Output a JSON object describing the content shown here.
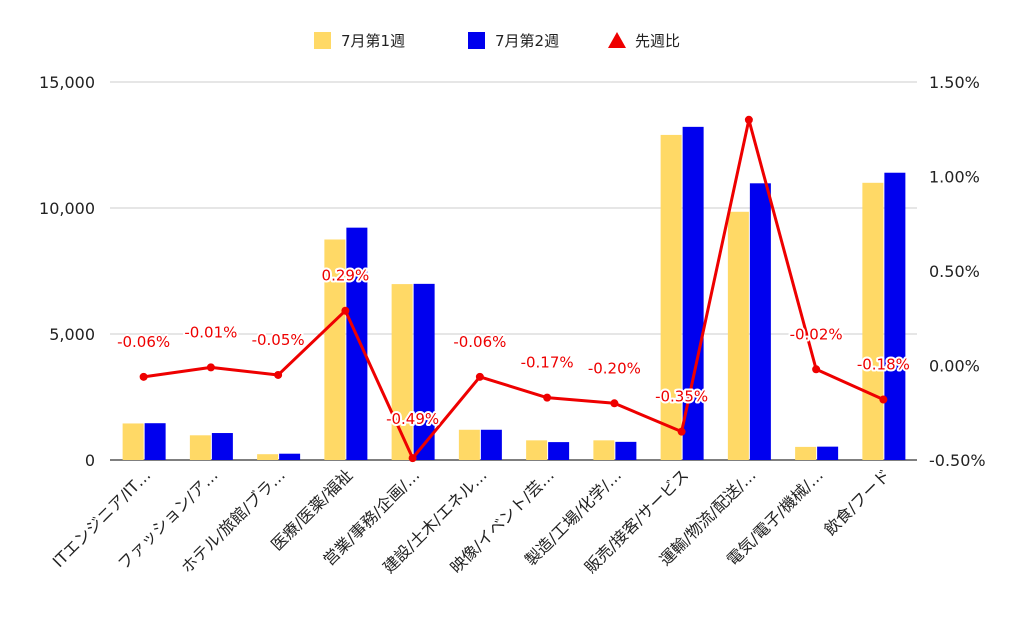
{
  "chart_data": {
    "type": "bar",
    "categories": [
      "ITエンジニア/IT…",
      "ファッション/ア…",
      "ホテル/旅館/ブラ…",
      "医療/医薬/福祉",
      "営業/事務/企画/…",
      "建設/土木/エネル…",
      "映像/イベント/芸…",
      "製造/工場/化学/…",
      "販売/接客/サービス",
      "運輸/物流/配送/…",
      "電気/電子/機械/…",
      "飲食/フード"
    ],
    "series": [
      {
        "name": "7月第1週",
        "type": "bar",
        "axis": "left",
        "color": "#FFD966",
        "values": [
          1450,
          980,
          230,
          8750,
          6980,
          1200,
          780,
          780,
          12900,
          9850,
          520,
          11000
        ]
      },
      {
        "name": "7月第2週",
        "type": "bar",
        "axis": "left",
        "color": "#0000EE",
        "values": [
          1460,
          1070,
          250,
          9220,
          6990,
          1200,
          710,
          720,
          13220,
          10980,
          530,
          11400
        ]
      },
      {
        "name": "先週比",
        "type": "line",
        "axis": "right",
        "color": "#EE0000",
        "values": [
          -0.06,
          -0.01,
          -0.05,
          0.29,
          -0.49,
          -0.06,
          -0.17,
          -0.2,
          -0.35,
          1.3,
          -0.02,
          -0.18
        ],
        "labels": [
          "-0.06%",
          "-0.01%",
          "-0.05%",
          "0.29%",
          "-0.49%",
          "-0.06%",
          "-0.17%",
          "-0.20%",
          "-0.35%",
          "",
          "-0.02%",
          "-0.18%"
        ]
      }
    ],
    "left_axis": {
      "ylim": [
        0,
        15000
      ],
      "ticks": [
        0,
        5000,
        10000,
        15000
      ],
      "tick_labels": [
        "0",
        "5,000",
        "10,000",
        "15,000"
      ]
    },
    "right_axis": {
      "ylim": [
        -0.5,
        1.5
      ],
      "ticks": [
        -0.5,
        0,
        0.5,
        1.0,
        1.5
      ],
      "tick_labels": [
        "-0.50%",
        "0.00%",
        "0.50%",
        "1.00%",
        "1.50%"
      ]
    },
    "grid": true,
    "legend_position": "top-center",
    "title": "",
    "xlabel": "",
    "ylabel": ""
  }
}
